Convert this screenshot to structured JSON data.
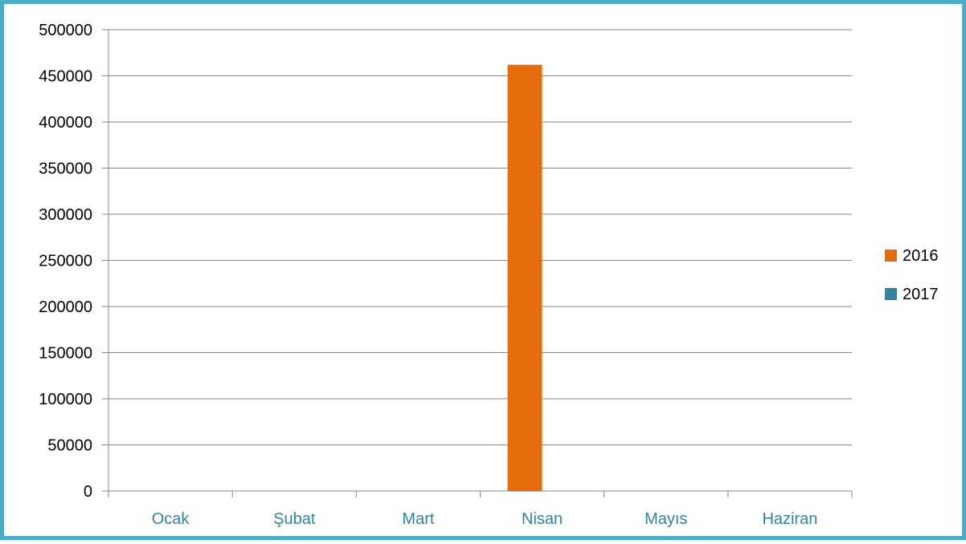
{
  "chart_data": {
    "type": "bar",
    "categories": [
      "Ocak",
      "Şubat",
      "Mart",
      "Nisan",
      "Mayıs",
      "Haziran"
    ],
    "series": [
      {
        "name": "2016",
        "color": "#e46c0a",
        "values": [
          0,
          0,
          0,
          462000,
          0,
          0
        ]
      },
      {
        "name": "2017",
        "color": "#31849b",
        "values": [
          0,
          0,
          0,
          0,
          0,
          0
        ]
      }
    ],
    "title": "",
    "xlabel": "",
    "ylabel": "",
    "ylim": [
      0,
      500000
    ],
    "yticks": [
      "0",
      "50000",
      "100000",
      "150000",
      "200000",
      "250000",
      "300000",
      "350000",
      "400000",
      "450000",
      "500000"
    ],
    "grid": true,
    "legend_position": "right",
    "colors": {
      "frame_border": "#4bacc6",
      "category_label": "#31849b",
      "gridline": "#868686"
    }
  }
}
